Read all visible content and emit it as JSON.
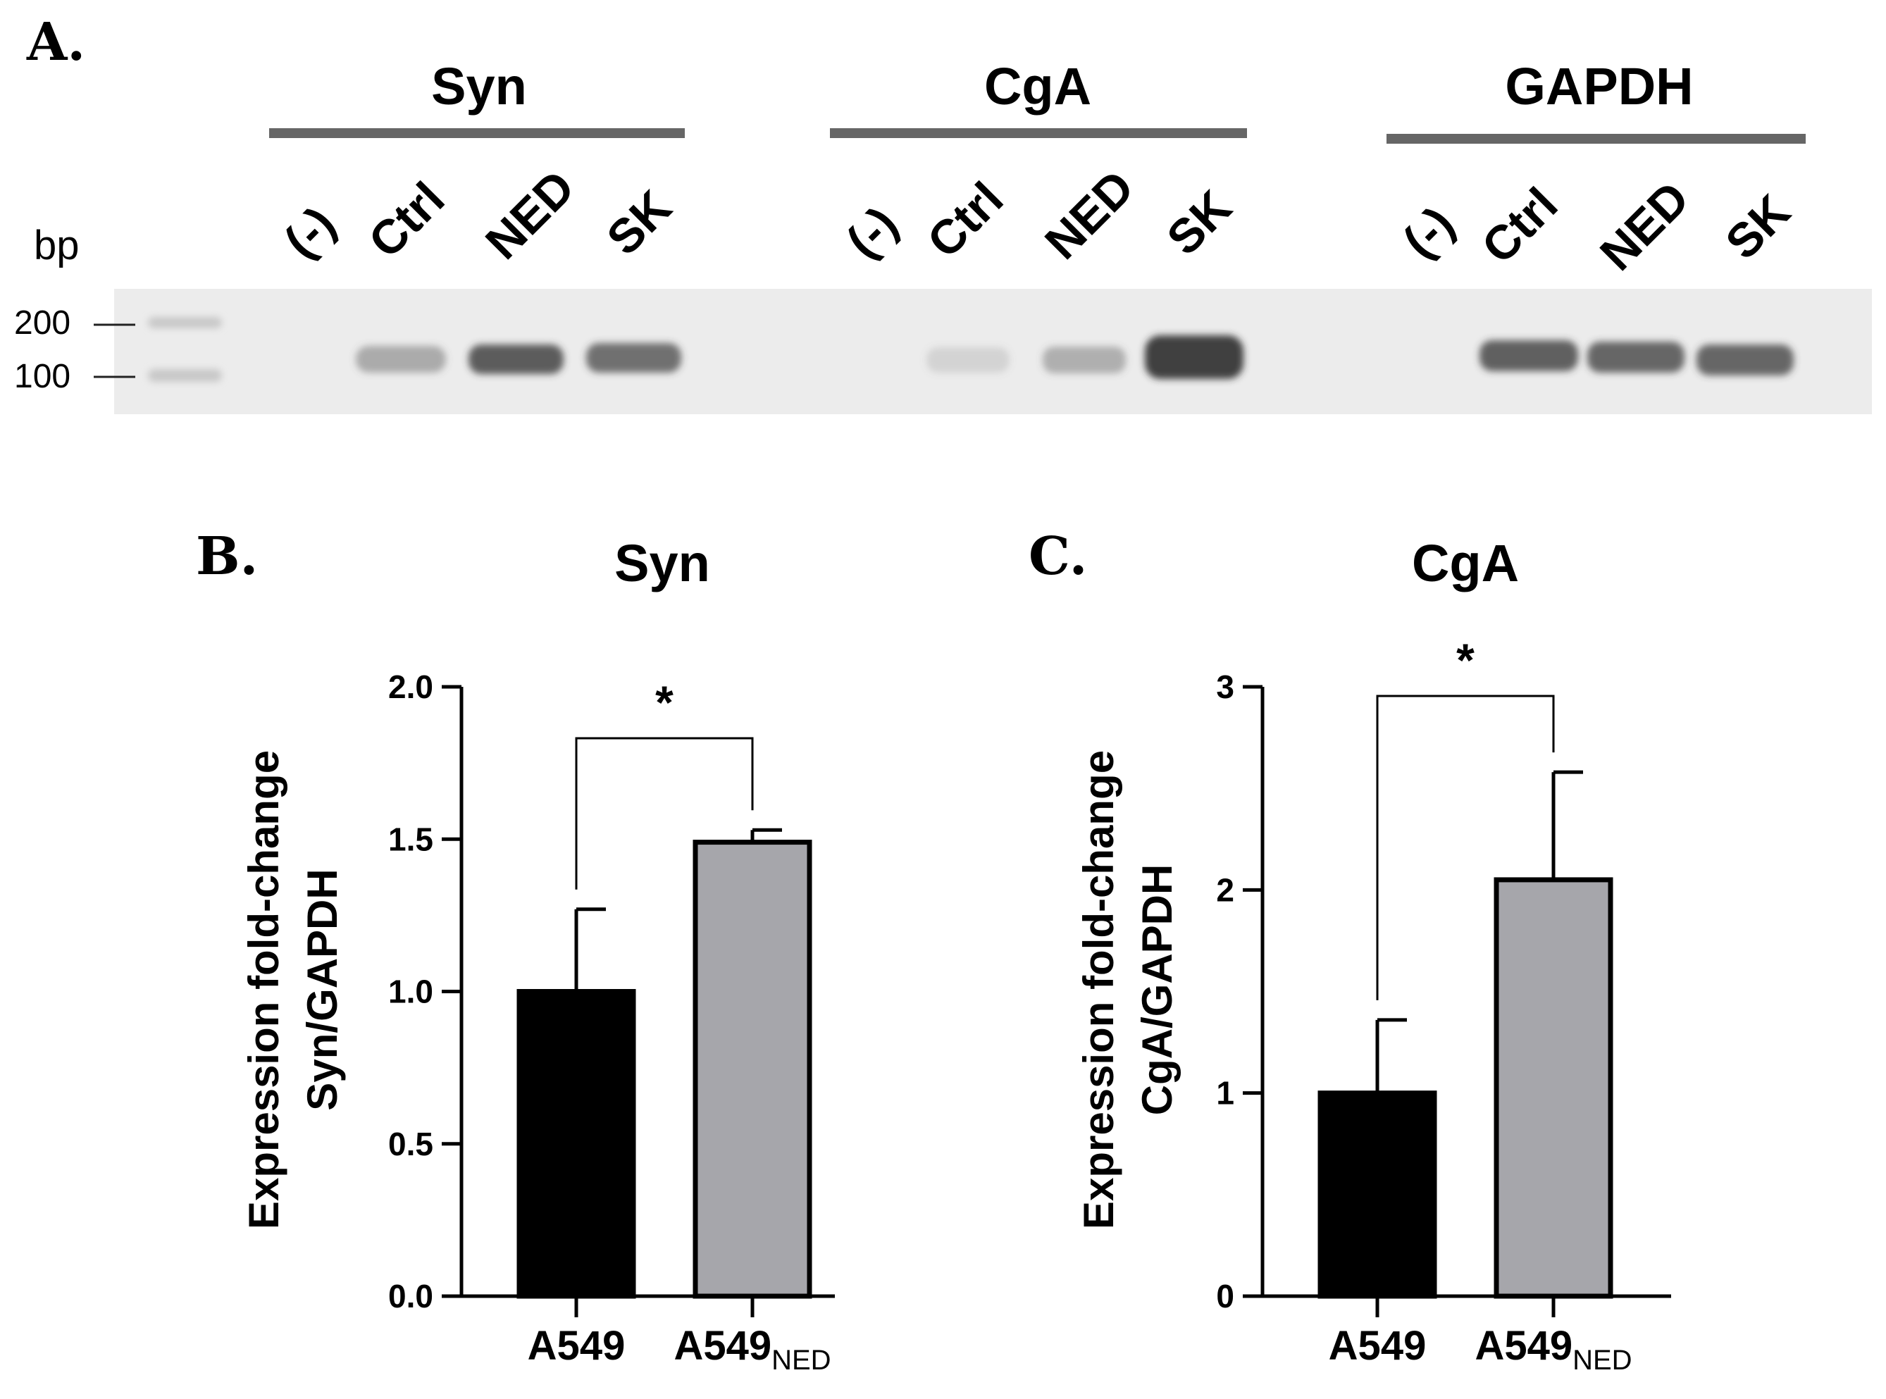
{
  "panel_a": {
    "label": "A.",
    "bp_label": "bp",
    "markers": [
      {
        "label": "200",
        "bp": 200
      },
      {
        "label": "100",
        "bp": 100
      }
    ],
    "groups": [
      {
        "name": "Syn",
        "lanes": [
          "(-)",
          "Ctrl",
          "NED",
          "SK"
        ],
        "band_intensity": [
          0,
          0.45,
          0.8,
          0.7
        ]
      },
      {
        "name": "CgA",
        "lanes": [
          "(-)",
          "Ctrl",
          "NED",
          "SK"
        ],
        "band_intensity": [
          0,
          0.12,
          0.35,
          0.95
        ]
      },
      {
        "name": "GAPDH",
        "lanes": [
          "(-)",
          "Ctrl",
          "NED",
          "SK"
        ],
        "band_intensity": [
          0,
          0.75,
          0.72,
          0.72
        ]
      }
    ]
  },
  "panel_b": {
    "label": "B."
  },
  "panel_c": {
    "label": "C."
  },
  "chart_data": [
    {
      "type": "bar",
      "title": "Syn",
      "ylabel_line1": "Expression fold-change",
      "ylabel_line2": "Syn/GAPDH",
      "categories": [
        "A549",
        "A549"
      ],
      "category_subscripts": [
        "",
        "NED"
      ],
      "values": [
        1.0,
        1.49
      ],
      "errors": [
        0.27,
        0.04
      ],
      "bar_colors": [
        "#000000",
        "#a6a6ab"
      ],
      "ylim": [
        0,
        2.0
      ],
      "yticks": [
        0.0,
        0.5,
        1.0,
        1.5,
        2.0
      ],
      "ytick_labels": [
        "0.0",
        "0.5",
        "1.0",
        "1.5",
        "2.0"
      ],
      "significance": "*"
    },
    {
      "type": "bar",
      "title": "CgA",
      "ylabel_line1": "Expression fold-change",
      "ylabel_line2": "CgA/GAPDH",
      "categories": [
        "A549",
        "A549"
      ],
      "category_subscripts": [
        "",
        "NED"
      ],
      "values": [
        1.0,
        2.05
      ],
      "errors": [
        0.36,
        0.53
      ],
      "bar_colors": [
        "#000000",
        "#a6a6ab"
      ],
      "ylim": [
        0,
        3
      ],
      "yticks": [
        0,
        1,
        2,
        3
      ],
      "ytick_labels": [
        "0",
        "1",
        "2",
        "3"
      ],
      "significance": "*"
    }
  ]
}
